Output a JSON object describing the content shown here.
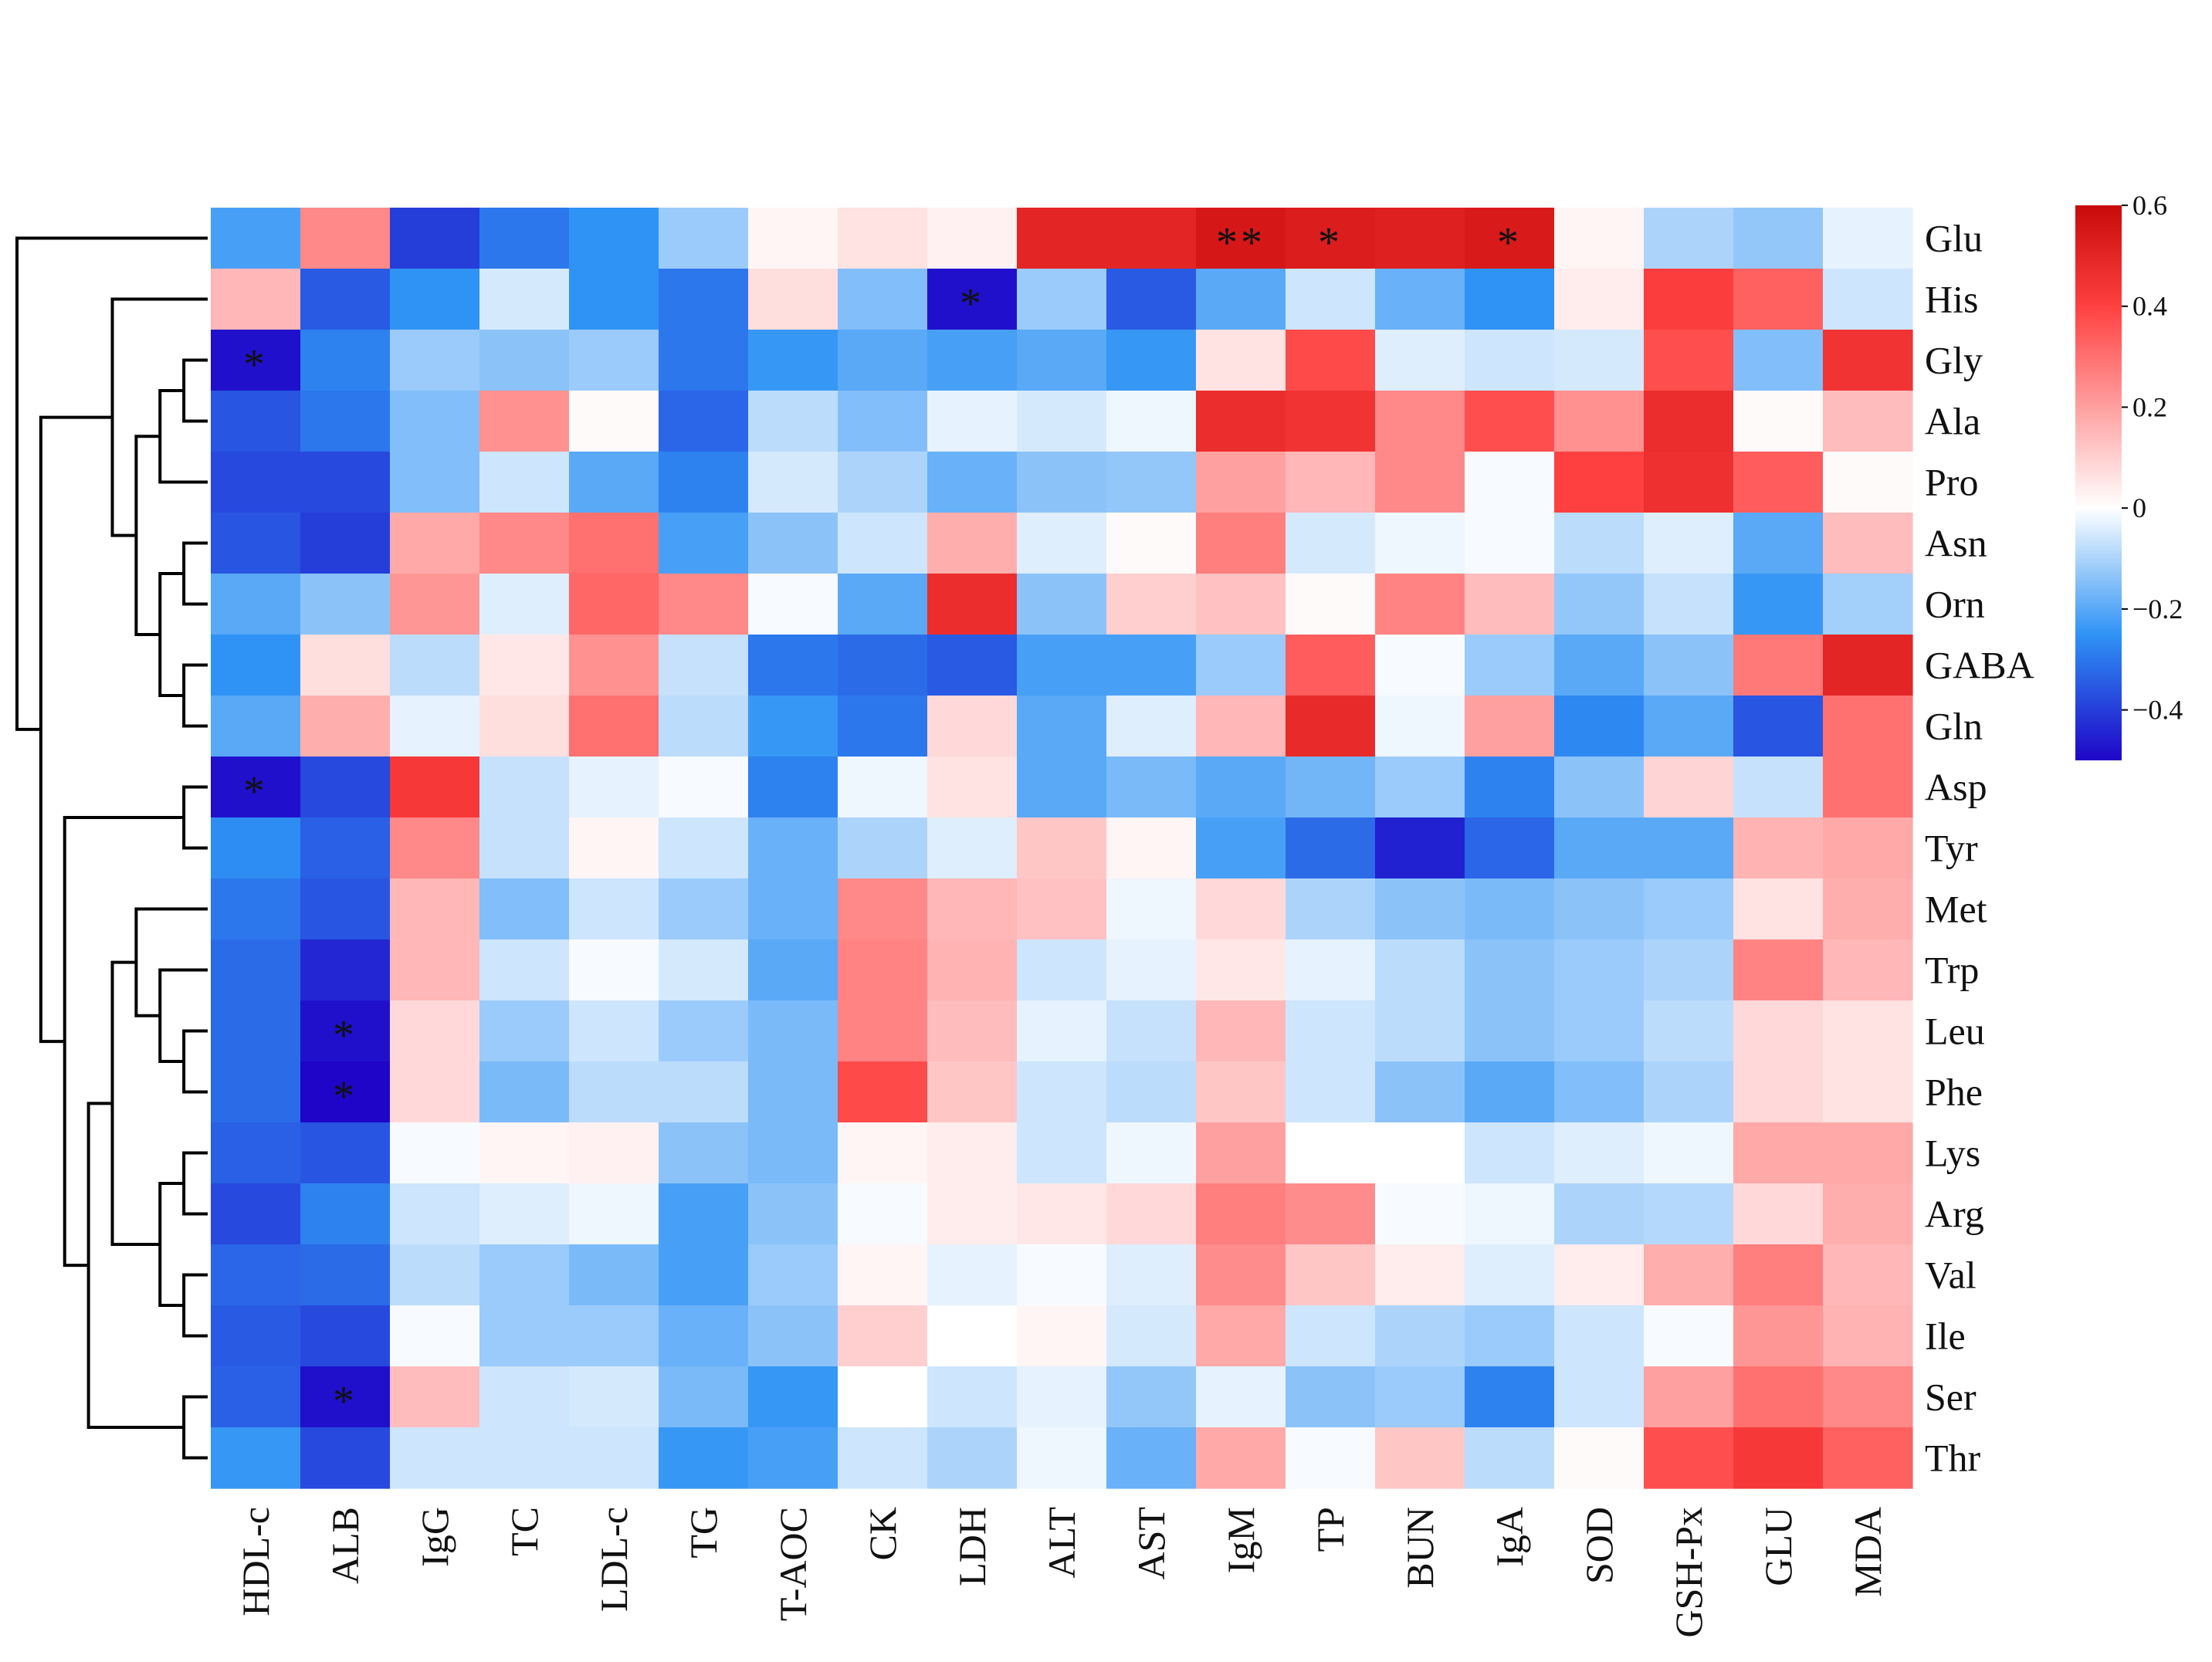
{
  "chart_data": {
    "type": "heatmap",
    "title": "",
    "columns": [
      "HDL-c",
      "ALB",
      "IgG",
      "TC",
      "LDL-c",
      "TG",
      "T-AOC",
      "CK",
      "LDH",
      "ALT",
      "AST",
      "IgM",
      "TP",
      "BUN",
      "IgA",
      "SOD",
      "GSH-Px",
      "GLU",
      "MDA"
    ],
    "rows": [
      "Glu",
      "His",
      "Gly",
      "Ala",
      "Pro",
      "Asn",
      "Orn",
      "GABA",
      "Gln",
      "Asp",
      "Tyr",
      "Met",
      "Trp",
      "Leu",
      "Phe",
      "Lys",
      "Arg",
      "Val",
      "Ile",
      "Ser",
      "Thr"
    ],
    "values": [
      [
        -0.22,
        0.25,
        -0.4,
        -0.3,
        -0.25,
        -0.12,
        0.02,
        0.06,
        0.03,
        0.5,
        0.5,
        0.55,
        0.53,
        0.52,
        0.54,
        0.02,
        -0.1,
        -0.13,
        -0.03
      ],
      [
        0.15,
        -0.35,
        -0.25,
        -0.05,
        -0.25,
        -0.3,
        0.07,
        -0.15,
        -0.48,
        -0.12,
        -0.35,
        -0.2,
        -0.06,
        -0.18,
        -0.25,
        0.04,
        0.41,
        0.33,
        -0.06
      ],
      [
        -0.48,
        -0.28,
        -0.12,
        -0.14,
        -0.12,
        -0.3,
        -0.24,
        -0.2,
        -0.22,
        -0.2,
        -0.24,
        0.06,
        0.38,
        -0.04,
        -0.06,
        -0.05,
        0.37,
        -0.15,
        0.45
      ],
      [
        -0.36,
        -0.3,
        -0.15,
        0.23,
        0.01,
        -0.33,
        -0.08,
        -0.15,
        -0.03,
        -0.05,
        -0.02,
        0.47,
        0.45,
        0.25,
        0.37,
        0.23,
        0.47,
        0.01,
        0.14
      ],
      [
        -0.38,
        -0.38,
        -0.15,
        -0.06,
        -0.2,
        -0.28,
        -0.05,
        -0.1,
        -0.18,
        -0.14,
        -0.13,
        0.2,
        0.15,
        0.25,
        -0.01,
        0.4,
        0.46,
        0.34,
        0.01
      ],
      [
        -0.36,
        -0.4,
        0.18,
        0.25,
        0.3,
        -0.22,
        -0.14,
        -0.06,
        0.17,
        -0.04,
        0.01,
        0.27,
        -0.05,
        -0.02,
        -0.01,
        -0.08,
        -0.04,
        -0.2,
        0.14
      ],
      [
        -0.2,
        -0.14,
        0.22,
        -0.04,
        0.32,
        0.25,
        -0.01,
        -0.2,
        0.47,
        -0.14,
        0.1,
        0.13,
        0.01,
        0.26,
        0.14,
        -0.13,
        -0.07,
        -0.24,
        -0.11
      ],
      [
        -0.25,
        0.07,
        -0.08,
        0.05,
        0.23,
        -0.07,
        -0.3,
        -0.32,
        -0.35,
        -0.22,
        -0.22,
        -0.12,
        0.34,
        -0.01,
        -0.12,
        -0.2,
        -0.14,
        0.28,
        0.5
      ],
      [
        -0.2,
        0.17,
        -0.03,
        0.07,
        0.3,
        -0.08,
        -0.24,
        -0.3,
        0.08,
        -0.2,
        -0.04,
        0.15,
        0.48,
        -0.02,
        0.2,
        -0.27,
        -0.2,
        -0.36,
        0.3
      ],
      [
        -0.48,
        -0.38,
        0.43,
        -0.07,
        -0.03,
        -0.01,
        -0.28,
        -0.02,
        0.06,
        -0.2,
        -0.16,
        -0.2,
        -0.17,
        -0.12,
        -0.28,
        -0.14,
        0.09,
        -0.07,
        0.3
      ],
      [
        -0.26,
        -0.34,
        0.25,
        -0.07,
        0.02,
        -0.06,
        -0.18,
        -0.1,
        -0.04,
        0.12,
        0.02,
        -0.22,
        -0.32,
        -0.45,
        -0.33,
        -0.2,
        -0.2,
        0.16,
        0.18
      ],
      [
        -0.3,
        -0.36,
        0.15,
        -0.15,
        -0.06,
        -0.12,
        -0.18,
        0.25,
        0.15,
        0.13,
        -0.02,
        0.08,
        -0.1,
        -0.14,
        -0.16,
        -0.14,
        -0.12,
        0.06,
        0.17
      ],
      [
        -0.32,
        -0.44,
        0.15,
        -0.06,
        -0.01,
        -0.05,
        -0.2,
        0.26,
        0.16,
        -0.06,
        -0.03,
        0.05,
        -0.03,
        -0.08,
        -0.14,
        -0.12,
        -0.1,
        0.26,
        0.15
      ],
      [
        -0.32,
        -0.48,
        0.08,
        -0.12,
        -0.06,
        -0.12,
        -0.16,
        0.26,
        0.14,
        -0.03,
        -0.07,
        0.15,
        -0.06,
        -0.08,
        -0.14,
        -0.12,
        -0.08,
        0.08,
        0.06
      ],
      [
        -0.32,
        -0.5,
        0.08,
        -0.16,
        -0.08,
        -0.08,
        -0.16,
        0.38,
        0.12,
        -0.06,
        -0.08,
        0.12,
        -0.06,
        -0.14,
        -0.2,
        -0.15,
        -0.1,
        0.08,
        0.06
      ],
      [
        -0.34,
        -0.36,
        -0.01,
        0.02,
        0.03,
        -0.14,
        -0.16,
        0.02,
        0.04,
        -0.06,
        -0.02,
        0.2,
        0.0,
        0.0,
        -0.06,
        -0.04,
        -0.02,
        0.18,
        0.18
      ],
      [
        -0.38,
        -0.28,
        -0.06,
        -0.04,
        -0.02,
        -0.22,
        -0.14,
        -0.01,
        0.04,
        0.05,
        0.08,
        0.27,
        0.24,
        -0.01,
        -0.02,
        -0.1,
        -0.09,
        0.08,
        0.17
      ],
      [
        -0.33,
        -0.32,
        -0.08,
        -0.12,
        -0.16,
        -0.22,
        -0.12,
        0.02,
        -0.03,
        -0.01,
        -0.04,
        0.24,
        0.12,
        0.04,
        -0.04,
        0.04,
        0.17,
        0.27,
        0.15
      ],
      [
        -0.35,
        -0.38,
        -0.01,
        -0.12,
        -0.12,
        -0.18,
        -0.14,
        0.1,
        0.0,
        0.02,
        -0.05,
        0.18,
        -0.06,
        -0.1,
        -0.12,
        -0.06,
        -0.01,
        0.22,
        0.16
      ],
      [
        -0.34,
        -0.48,
        0.14,
        -0.06,
        -0.05,
        -0.16,
        -0.24,
        0.0,
        -0.06,
        -0.03,
        -0.13,
        -0.03,
        -0.14,
        -0.12,
        -0.28,
        -0.06,
        0.2,
        0.3,
        0.25
      ],
      [
        -0.24,
        -0.38,
        -0.06,
        -0.06,
        -0.06,
        -0.24,
        -0.22,
        -0.06,
        -0.1,
        -0.02,
        -0.18,
        0.18,
        -0.01,
        0.12,
        -0.08,
        0.01,
        0.37,
        0.43,
        0.33
      ]
    ],
    "significance": [
      {
        "row": "Glu",
        "col": "IgM",
        "label": "**"
      },
      {
        "row": "Glu",
        "col": "TP",
        "label": "*"
      },
      {
        "row": "Glu",
        "col": "IgA",
        "label": "*"
      },
      {
        "row": "His",
        "col": "LDH",
        "label": "*"
      },
      {
        "row": "Gly",
        "col": "HDL-c",
        "label": "*"
      },
      {
        "row": "Asp",
        "col": "HDL-c",
        "label": "*"
      },
      {
        "row": "Leu",
        "col": "ALB",
        "label": "*"
      },
      {
        "row": "Phe",
        "col": "ALB",
        "label": "*"
      },
      {
        "row": "Ser",
        "col": "ALB",
        "label": "*"
      }
    ],
    "colorbar": {
      "range": [
        -0.5,
        0.6
      ],
      "ticks": [
        0.6,
        0.4,
        0.2,
        0,
        -0.2,
        -0.4
      ],
      "tick_labels": [
        "0.6",
        "0.4",
        "0.2",
        "0",
        "−0.2",
        "−0.4"
      ],
      "colors": [
        "#1f05c8",
        "#2f93f5",
        "#ffffff",
        "#ff4040",
        "#c80a0a"
      ]
    },
    "column_dendrogram": [
      [
        0,
        1
      ],
      [
        8,
        9
      ],
      [
        19,
        10
      ],
      [
        20,
        7
      ],
      [
        2,
        3
      ],
      [
        23,
        4
      ],
      [
        5,
        6
      ],
      [
        12,
        13
      ],
      [
        27,
        14
      ],
      [
        11,
        28
      ],
      [
        29,
        15
      ],
      [
        16,
        17
      ],
      [
        31,
        18
      ],
      [
        30,
        32
      ],
      [
        22,
        21
      ],
      [
        34,
        24
      ],
      [
        35,
        25
      ],
      [
        36,
        26
      ],
      [
        33,
        37
      ]
    ],
    "row_dendrogram": [
      [
        2,
        3
      ],
      [
        21,
        4
      ],
      [
        5,
        6
      ],
      [
        7,
        8
      ],
      [
        23,
        24
      ],
      [
        22,
        25
      ],
      [
        1,
        26
      ],
      [
        13,
        14
      ],
      [
        12,
        28
      ],
      [
        11,
        29
      ],
      [
        15,
        16
      ],
      [
        17,
        18
      ],
      [
        31,
        32
      ],
      [
        30,
        33
      ],
      [
        19,
        20
      ],
      [
        34,
        35
      ],
      [
        9,
        10
      ],
      [
        36,
        37
      ],
      [
        27,
        38
      ],
      [
        0,
        39
      ]
    ]
  }
}
